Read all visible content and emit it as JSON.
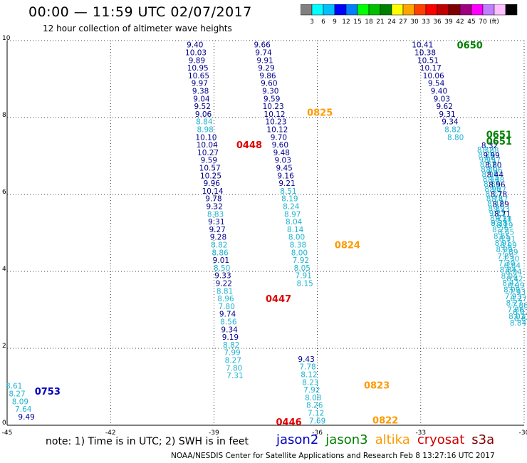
{
  "title": "00:00 — 11:59 UTC 02/07/2017",
  "subtitle": "12 hour collection of altimeter wave heights",
  "colorbar": {
    "colors": [
      "#808080",
      "#00ffff",
      "#00bfff",
      "#0000ff",
      "#0080ff",
      "#00ff00",
      "#00c000",
      "#008000",
      "#ffff00",
      "#ffa500",
      "#ff4000",
      "#ff0000",
      "#c00000",
      "#800000",
      "#a00080",
      "#ff00ff",
      "#c080ff",
      "#ffc0ff",
      "#000000"
    ],
    "labels": [
      "3",
      "6",
      "9",
      "12",
      "15",
      "18",
      "21",
      "24",
      "27",
      "30",
      "33",
      "36",
      "39",
      "42",
      "45",
      "70",
      "(ft)"
    ]
  },
  "note": "note: 1) Time is in UTC; 2) SWH is in feet",
  "legend": [
    {
      "name": "jason2",
      "color": "#0000c0"
    },
    {
      "name": "jason3",
      "color": "#008000"
    },
    {
      "name": "altika",
      "color": "#ff9900"
    },
    {
      "name": "cryosat",
      "color": "#d00000"
    },
    {
      "name": "s3a",
      "color": "#800000"
    }
  ],
  "footer": "NOAA/NESDIS Center for Satellite Applications and Research   Feb  8 13:27:16 UTC 2017",
  "colors": {
    "dark": "#00008b",
    "light": "#1eb4d2",
    "green": "#008000",
    "orange": "#ff9900",
    "red": "#e00000",
    "blue": "#0000c0"
  },
  "chart_data": {
    "type": "scatter",
    "xlim": [
      -45,
      -30
    ],
    "ylim": [
      0,
      10
    ],
    "xticks": [
      "-45",
      "-42",
      "-39",
      "-36",
      "-33",
      "-30"
    ],
    "yticks": [
      "0",
      "2",
      "4",
      "6",
      "8",
      "10"
    ],
    "grid": true,
    "time_labels": [
      {
        "text": "0650",
        "x": -31.95,
        "y": 9.8,
        "color": "green"
      },
      {
        "text": "0651",
        "x": -31.1,
        "y": 7.47,
        "color": "green"
      },
      {
        "text": "0651",
        "x": -31.1,
        "y": 7.3,
        "color": "green"
      },
      {
        "text": "0825",
        "x": -36.3,
        "y": 8.05,
        "color": "orange"
      },
      {
        "text": "0824",
        "x": -35.5,
        "y": 4.6,
        "color": "orange"
      },
      {
        "text": "0823",
        "x": -34.65,
        "y": 0.95,
        "color": "orange"
      },
      {
        "text": "0822",
        "x": -34.4,
        "y": 0.05,
        "color": "orange"
      },
      {
        "text": "0448",
        "x": -38.35,
        "y": 7.2,
        "color": "red"
      },
      {
        "text": "0447",
        "x": -37.5,
        "y": 3.2,
        "color": "red"
      },
      {
        "text": "0446",
        "x": -37.2,
        "y": 0.0,
        "color": "red"
      },
      {
        "text": "0753",
        "x": -44.2,
        "y": 0.8,
        "color": "blue"
      }
    ],
    "value_columns": [
      {
        "x0": -39.55,
        "dx": 0.027,
        "y_top": 9.82,
        "step": -0.2,
        "values": [
          [
            "9.40",
            "d"
          ],
          [
            "10.03",
            "d"
          ],
          [
            "9.89",
            "d"
          ],
          [
            "10.95",
            "d"
          ],
          [
            "10.65",
            "d"
          ],
          [
            "9.97",
            "d"
          ],
          [
            "9.38",
            "d"
          ],
          [
            "9.04",
            "d"
          ],
          [
            "9.52",
            "d"
          ],
          [
            "9.06",
            "d"
          ],
          [
            "8.84",
            "l"
          ],
          [
            "8.98",
            "l"
          ],
          [
            "10.10",
            "d"
          ],
          [
            "10.04",
            "d"
          ],
          [
            "10.27",
            "d"
          ],
          [
            "9.59",
            "d"
          ],
          [
            "10.57",
            "d"
          ],
          [
            "10.25",
            "d"
          ],
          [
            "9.96",
            "d"
          ],
          [
            "10.14",
            "d"
          ],
          [
            "9.78",
            "d"
          ],
          [
            "9.32",
            "d"
          ],
          [
            "8.83",
            "l"
          ],
          [
            "9.31",
            "d"
          ],
          [
            "9.27",
            "d"
          ],
          [
            "9.28",
            "d"
          ],
          [
            "8.82",
            "l"
          ],
          [
            "8.86",
            "l"
          ],
          [
            "9.01",
            "d"
          ],
          [
            "8.50",
            "l"
          ],
          [
            "9.33",
            "d"
          ],
          [
            "9.22",
            "d"
          ],
          [
            "8.81",
            "l"
          ],
          [
            "8.96",
            "l"
          ],
          [
            "7.80",
            "l"
          ],
          [
            "9.74",
            "d"
          ],
          [
            "8.56",
            "l"
          ],
          [
            "9.34",
            "d"
          ],
          [
            "9.19",
            "d"
          ],
          [
            "8.82",
            "l"
          ],
          [
            "7.99",
            "l"
          ],
          [
            "8.27",
            "l"
          ],
          [
            "7.80",
            "l"
          ],
          [
            "7.31",
            "l"
          ]
        ]
      },
      {
        "x0": -37.6,
        "dx": 0.04,
        "y_top": 9.82,
        "step": -0.2,
        "values": [
          [
            "9.66",
            "d"
          ],
          [
            "9.74",
            "d"
          ],
          [
            "9.91",
            "d"
          ],
          [
            "9.29",
            "d"
          ],
          [
            "9.86",
            "d"
          ],
          [
            "9.60",
            "d"
          ],
          [
            "9.30",
            "d"
          ],
          [
            "9.59",
            "d"
          ],
          [
            "10.23",
            "d"
          ],
          [
            "10.12",
            "d"
          ],
          [
            "10.23",
            "d"
          ],
          [
            "10.12",
            "d"
          ],
          [
            "9.70",
            "d"
          ],
          [
            "9.60",
            "d"
          ],
          [
            "9.48",
            "d"
          ],
          [
            "9.03",
            "d"
          ],
          [
            "9.45",
            "d"
          ],
          [
            "9.16",
            "d"
          ],
          [
            "9.21",
            "d"
          ],
          [
            "8.51",
            "l"
          ],
          [
            "8.19",
            "l"
          ],
          [
            "8.24",
            "l"
          ],
          [
            "8.97",
            "l"
          ],
          [
            "8.04",
            "l"
          ],
          [
            "8.14",
            "l"
          ],
          [
            "8.00",
            "l"
          ],
          [
            "8.38",
            "l"
          ],
          [
            "8.00",
            "l"
          ],
          [
            "7.92",
            "l"
          ],
          [
            "8.05",
            "l"
          ],
          [
            "7.91",
            "l"
          ],
          [
            "8.15",
            "l"
          ],
          [
            "9.43",
            "d"
          ],
          [
            "7.78",
            "l"
          ],
          [
            "8.12",
            "l"
          ],
          [
            "8.23",
            "l"
          ],
          [
            "7.92",
            "l"
          ],
          [
            "8.08",
            "l"
          ],
          [
            "8.26",
            "l"
          ],
          [
            "7.12",
            "l"
          ],
          [
            "7.69",
            "l"
          ]
        ],
        "offset": 0,
        "splitAt": 32,
        "y_split": 1.65
      },
      {
        "x0": -32.95,
        "dx": 0.08,
        "y_top": 9.82,
        "step": -0.2,
        "values": [
          [
            "10.41",
            "d"
          ],
          [
            "10.38",
            "d"
          ],
          [
            "10.51",
            "d"
          ],
          [
            "10.17",
            "d"
          ],
          [
            "10.06",
            "d"
          ],
          [
            "9.54",
            "d"
          ],
          [
            "9.40",
            "d"
          ],
          [
            "9.03",
            "d"
          ],
          [
            "9.62",
            "d"
          ],
          [
            "9.31",
            "d"
          ],
          [
            "9.34",
            "d"
          ],
          [
            "8.82",
            "l"
          ],
          [
            "8.80",
            "l"
          ]
        ]
      },
      {
        "x0": -44.8,
        "dx": 0.09,
        "y_top": 0.95,
        "step": -0.2,
        "values": [
          [
            "8.61",
            "l"
          ],
          [
            "8.27",
            "l"
          ],
          [
            "8.09",
            "l"
          ],
          [
            "7.64",
            "l"
          ],
          [
            "9.49",
            "d"
          ]
        ]
      }
    ],
    "dense_streaks": [
      {
        "x_start": -31.0,
        "y_start": 7.2,
        "x_end": -30.6,
        "y_end": 5.3,
        "values": [
          "8.32",
          "8.88",
          "9.99",
          "8.57",
          "8.80",
          "8.96",
          "8.44",
          "8.88",
          "8.96",
          "8.27",
          "8.78",
          "8.47",
          "8.89",
          "9.23",
          "8.71",
          "9.21"
        ],
        "mix": "dl"
      },
      {
        "x_start": -30.6,
        "y_start": 5.3,
        "x_end": -30.05,
        "y_end": 2.7,
        "values": [
          "8.38",
          "8.29",
          "8.65",
          "8.91",
          "8.09",
          "7.89",
          "7.30",
          "8.84",
          "8.04",
          "8.42",
          "8.09",
          "7.93",
          "8.27",
          "7.86",
          "8.02",
          "8.84"
        ],
        "mix": "l"
      }
    ]
  }
}
